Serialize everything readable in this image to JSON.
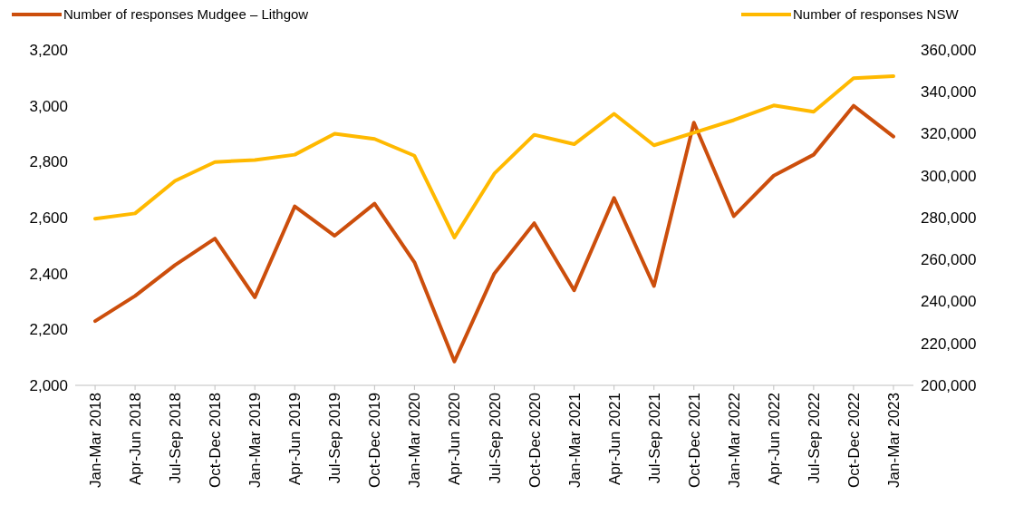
{
  "chart_data": {
    "type": "line",
    "categories": [
      "Jan-Mar 2018",
      "Apr-Jun 2018",
      "Jul-Sep 2018",
      "Oct-Dec 2018",
      "Jan-Mar 2019",
      "Apr-Jun 2019",
      "Jul-Sep 2019",
      "Oct-Dec 2019",
      "Jan-Mar 2020",
      "Apr-Jun 2020",
      "Jul-Sep 2020",
      "Oct-Dec 2020",
      "Jan-Mar 2021",
      "Apr-Jun 2021",
      "Jul-Sep 2021",
      "Oct-Dec 2021",
      "Jan-Mar 2022",
      "Apr-Jun 2022",
      "Jul-Sep 2022",
      "Oct-Dec 2022",
      "Jan-Mar 2023"
    ],
    "series": [
      {
        "name": "Number of responses Mudgee – Lithgow",
        "color": "#cc4e0c",
        "values": [
          2230,
          2320,
          2430,
          2525,
          2315,
          2640,
          2535,
          2650,
          2440,
          2085,
          2400,
          2580,
          2340,
          2670,
          2355,
          2940,
          2605,
          2750,
          2825,
          3000,
          2890
        ]
      },
      {
        "name": "Number of responses NSW",
        "color": "#ffb900",
        "axis": "y2",
        "values": [
          279500,
          282000,
          297500,
          306500,
          307500,
          310000,
          320000,
          317500,
          309500,
          270500,
          301000,
          319500,
          315000,
          329500,
          314500,
          320500,
          326500,
          333500,
          330500,
          346500,
          347500
        ]
      }
    ],
    "ylim": [
      2000,
      3200
    ],
    "yticks": [
      {
        "value": 2000,
        "label": "2,000"
      },
      {
        "value": 2200,
        "label": "2,200"
      },
      {
        "value": 2400,
        "label": "2,400"
      },
      {
        "value": 2600,
        "label": "2,600"
      },
      {
        "value": 2800,
        "label": "2,800"
      },
      {
        "value": 3000,
        "label": "3,000"
      },
      {
        "value": 3200,
        "label": "3,200"
      }
    ],
    "y2lim": [
      200000,
      360000
    ],
    "y2ticks": [
      {
        "value": 200000,
        "label": "200,000"
      },
      {
        "value": 220000,
        "label": "220,000"
      },
      {
        "value": 240000,
        "label": "240,000"
      },
      {
        "value": 260000,
        "label": "260,000"
      },
      {
        "value": 280000,
        "label": "280,000"
      },
      {
        "value": 300000,
        "label": "300,000"
      },
      {
        "value": 320000,
        "label": "320,000"
      },
      {
        "value": 340000,
        "label": "340,000"
      },
      {
        "value": 360000,
        "label": "360,000"
      }
    ],
    "legend": "top",
    "grid": false,
    "marker": "none",
    "line_style": "solid"
  }
}
